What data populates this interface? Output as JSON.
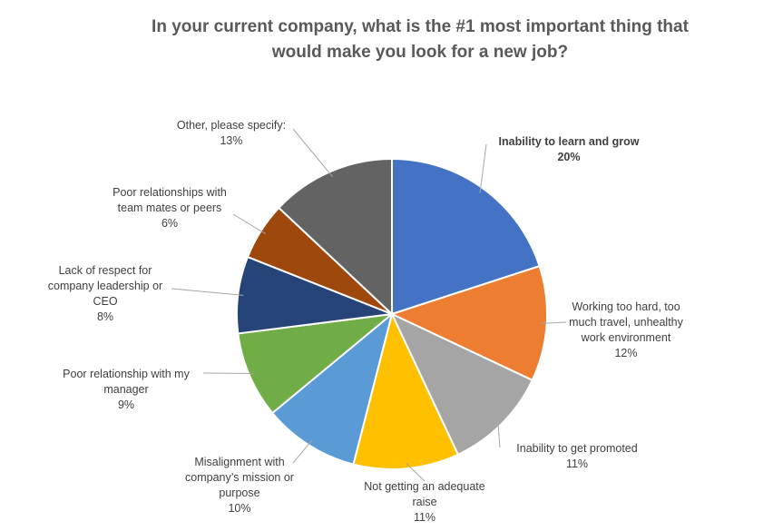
{
  "title_lines": [
    "In your current company, what is the #1 most important thing that",
    "would make you look for a new job?"
  ],
  "chart_data": {
    "type": "pie",
    "title": "In your current company, what is the #1 most important thing that would make you look for a new job?",
    "slices": [
      {
        "label_lines": [
          "Inability to learn and grow"
        ],
        "value": 20,
        "pct_text": "20%",
        "color": "#4472C4",
        "bold": true
      },
      {
        "label_lines": [
          "Working too hard, too",
          "much travel, unhealthy",
          "work environment"
        ],
        "value": 12,
        "pct_text": "12%",
        "color": "#ED7D31",
        "bold": false
      },
      {
        "label_lines": [
          "Inability to get promoted"
        ],
        "value": 11,
        "pct_text": "11%",
        "color": "#A5A5A5",
        "bold": false
      },
      {
        "label_lines": [
          "Not getting an adequate",
          "raise"
        ],
        "value": 11,
        "pct_text": "11%",
        "color": "#FFC000",
        "bold": false
      },
      {
        "label_lines": [
          "Misalignment with",
          "company’s mission or",
          "purpose"
        ],
        "value": 10,
        "pct_text": "10%",
        "color": "#5B9BD5",
        "bold": false
      },
      {
        "label_lines": [
          "Poor relationship with my",
          "manager"
        ],
        "value": 9,
        "pct_text": "9%",
        "color": "#70AD47",
        "bold": false
      },
      {
        "label_lines": [
          "Lack of respect for",
          "company leadership or",
          "CEO"
        ],
        "value": 8,
        "pct_text": "8%",
        "color": "#264478",
        "bold": false
      },
      {
        "label_lines": [
          "Poor relationships with",
          "team mates or peers"
        ],
        "value": 6,
        "pct_text": "6%",
        "color": "#9E480E",
        "bold": false
      },
      {
        "label_lines": [
          "Other, please specify:"
        ],
        "value": 13,
        "pct_text": "13%",
        "color": "#636363",
        "bold": false
      }
    ],
    "legend": "none"
  }
}
